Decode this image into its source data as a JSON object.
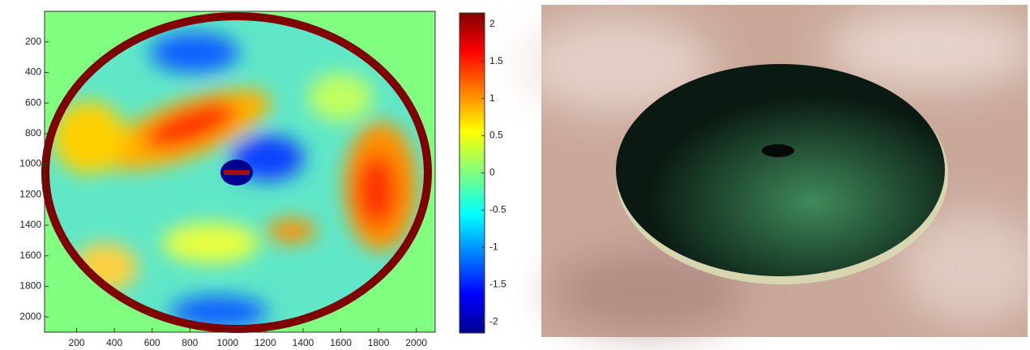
{
  "chart_data": {
    "type": "heatmap",
    "xlim": [
      30,
      2100
    ],
    "xticks": [
      200,
      400,
      600,
      800,
      1000,
      1200,
      1400,
      1600,
      1800,
      2000
    ],
    "ylim": [
      0,
      2100
    ],
    "yticks": [
      200,
      400,
      600,
      800,
      1000,
      1200,
      1400,
      1600,
      1800,
      2000
    ],
    "y_inverted": true,
    "colormap": "jet",
    "colorbar": {
      "clim": [
        -2.15,
        2.15
      ],
      "ticks": [
        2,
        1.5,
        1,
        0.5,
        0,
        -0.5,
        -1,
        -1.5,
        -2
      ]
    }
  }
}
